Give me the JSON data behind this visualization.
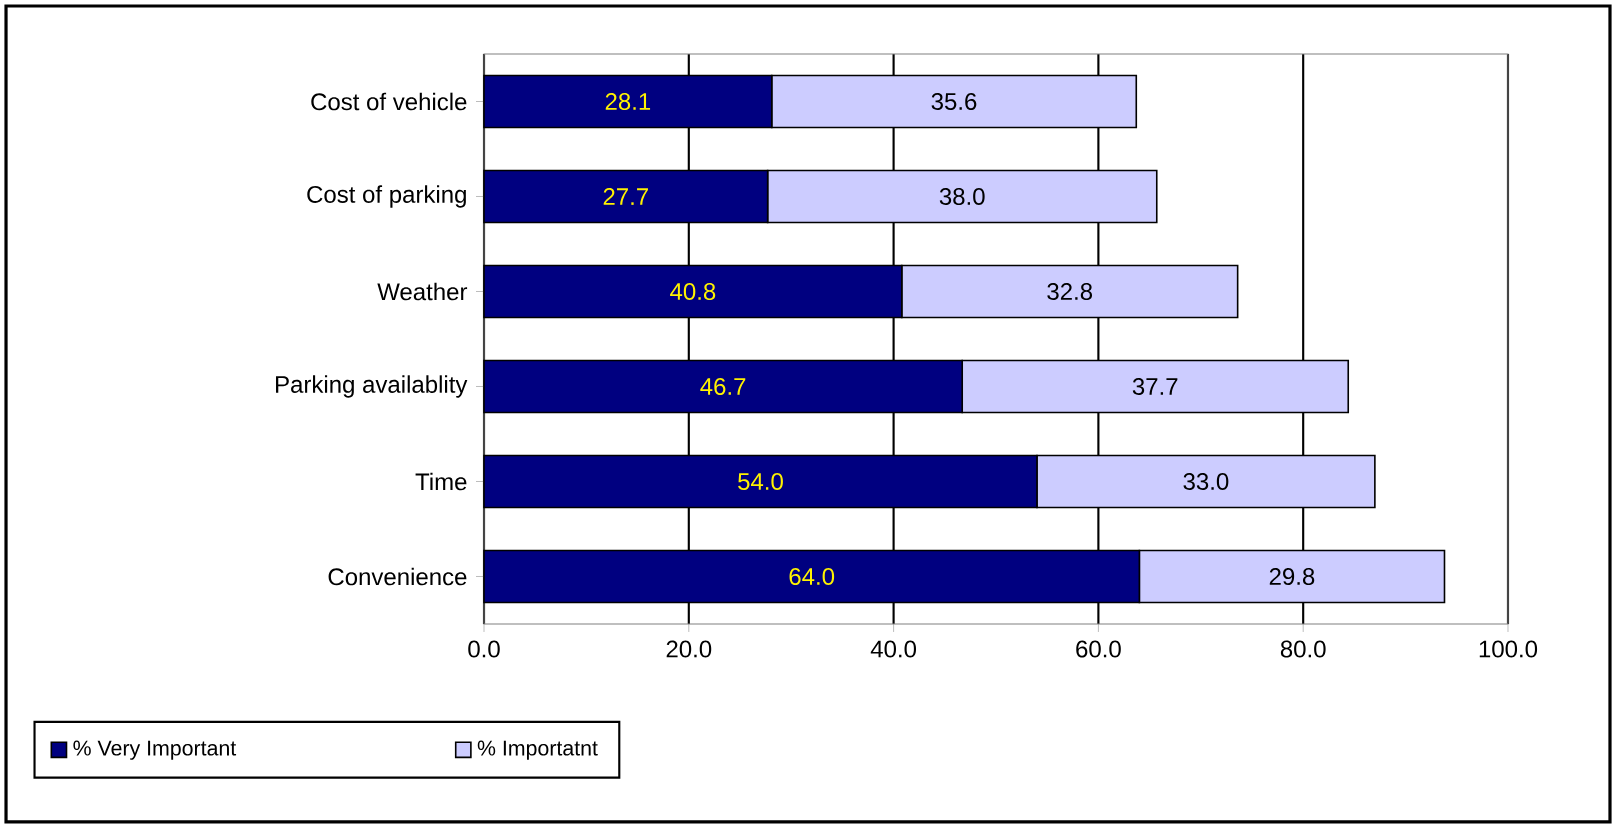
{
  "chart_data": {
    "type": "bar",
    "orientation": "horizontal",
    "stacked": true,
    "categories": [
      "Cost of vehicle",
      "Cost of parking",
      "Weather",
      "Parking availablity",
      "Time",
      "Convenience"
    ],
    "series": [
      {
        "name": "% Very Important",
        "color": "#000080",
        "values": [
          28.1,
          27.7,
          40.8,
          46.7,
          54.0,
          64.0
        ],
        "value_labels": [
          "28.1",
          "27.7",
          "40.8",
          "46.7",
          "54.0",
          "64.0"
        ]
      },
      {
        "name": "% Importatnt",
        "color": "#ccccff",
        "values": [
          35.6,
          38.0,
          32.8,
          37.7,
          33.0,
          29.8
        ],
        "value_labels": [
          "35.6",
          "38.0",
          "32.8",
          "37.7",
          "33.0",
          "29.8"
        ]
      }
    ],
    "xlim": [
      0,
      100
    ],
    "xticks": [
      {
        "value": 0,
        "label": "0.0"
      },
      {
        "value": 20,
        "label": "20.0"
      },
      {
        "value": 40,
        "label": "40.0"
      },
      {
        "value": 60,
        "label": "60.0"
      },
      {
        "value": 80,
        "label": "80.0"
      },
      {
        "value": 100,
        "label": "100.0"
      }
    ],
    "grid": "x",
    "legend": "bottom left"
  }
}
